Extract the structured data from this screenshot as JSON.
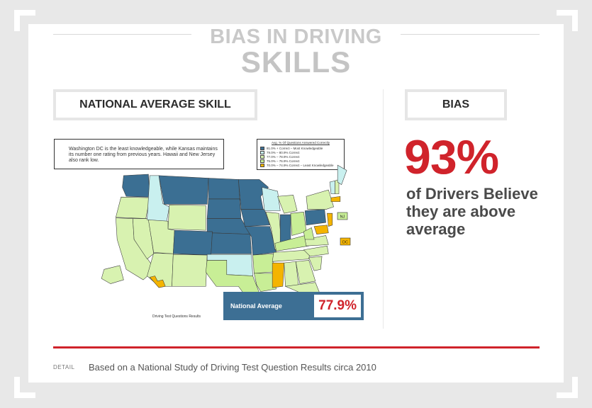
{
  "title": {
    "line1": "BIAS IN DRIVING",
    "line2": "SKILLS"
  },
  "left_panel": {
    "heading": "NATIONAL AVERAGE SKILL",
    "note": "Washington DC is the least knowledgeable, while Kansas maintains its number one rating from previous years. Hawaii and New Jersey also rank low.",
    "map_caption": "Driving Test Questions Results",
    "average_label": "National Average",
    "average_value": "77.9%"
  },
  "right_panel": {
    "heading": "BIAS",
    "percent": "93%",
    "claim": "of Drivers Believe they are above average"
  },
  "footer": {
    "tag": "DETAIL",
    "text": "Based on a National Study of Driving Test Question Results circa 2010"
  },
  "chart_data": {
    "type": "choropleth",
    "legend_title": "Avg. % Of Questions Answered Correctly",
    "legend": [
      {
        "label": "81.0% + Correct – Most Knowledgeable",
        "color": "#3b6f93"
      },
      {
        "label": "79.0% – 80.9% Correct",
        "color": "#c9f0ef"
      },
      {
        "label": "77.0% – 78.9% Correct",
        "color": "#d8f2b0"
      },
      {
        "label": "75.0% – 76.9% Correct",
        "color": "#c8ee96"
      },
      {
        "label": "70.0% – 74.9% Correct – Least Knowledgeable",
        "color": "#f4b400"
      }
    ],
    "colors": {
      "most": "#3b6f93",
      "high": "#c9f0ef",
      "mid": "#d8f2b0",
      "low": "#c8ee96",
      "least": "#f4b400"
    },
    "small_state_labels": [
      "NJ",
      "DC"
    ]
  }
}
